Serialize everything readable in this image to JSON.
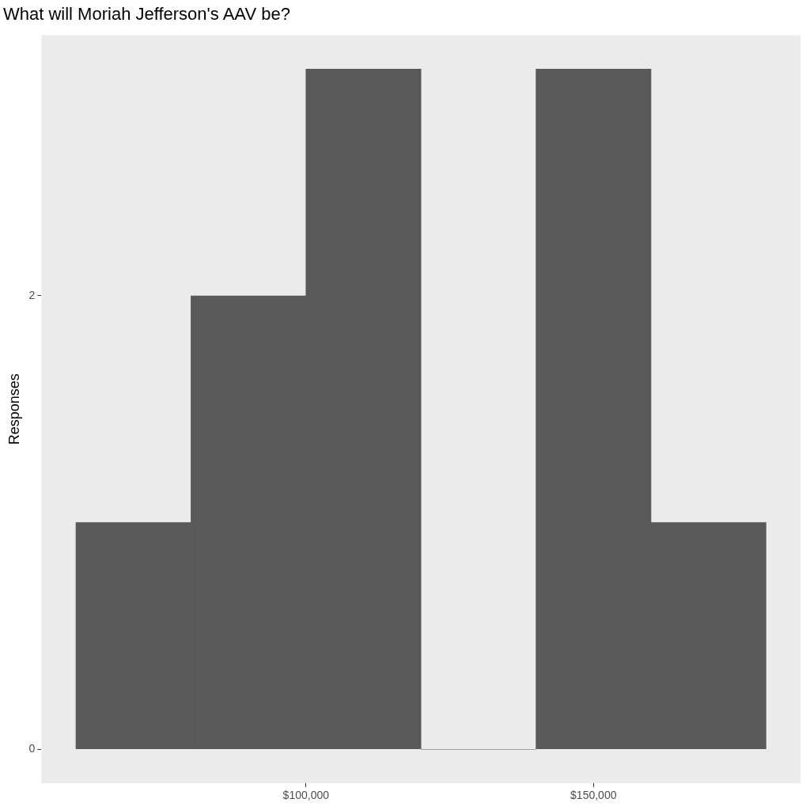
{
  "chart_data": {
    "type": "histogram",
    "title": "What will Moriah Jefferson's AAV be?",
    "ylabel": "Responses",
    "bins": [
      60000,
      80000,
      100000,
      120000,
      140000,
      160000,
      180000
    ],
    "values": [
      1,
      2,
      3,
      0,
      3,
      1
    ],
    "color": "#595959",
    "xlim": [
      54000,
      186000
    ],
    "xticks": [
      {
        "value": 100000,
        "label": "$100,000"
      },
      {
        "value": 150000,
        "label": "$150,000"
      }
    ],
    "ylim": [
      -0.15,
      3.15
    ],
    "yticks": [
      0,
      2
    ],
    "grid": false
  }
}
